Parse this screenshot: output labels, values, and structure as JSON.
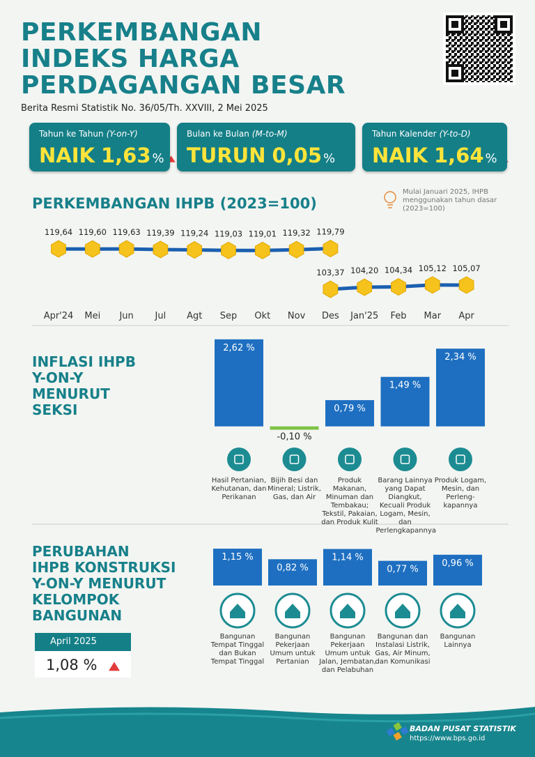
{
  "header": {
    "title_lines": [
      "PERKEMBANGAN",
      "INDEKS HARGA",
      "PERDAGANGAN BESAR"
    ],
    "subtitle": "Berita Resmi Statistik  No. 36/05/Th. XXVIII, 2 Mei 2025"
  },
  "summary": [
    {
      "label": "Tahun ke Tahun",
      "label_italic": "(Y-on-Y)",
      "direction": "NAIK",
      "value": "1,63",
      "unit": "%",
      "trend": "up"
    },
    {
      "label": "Bulan ke Bulan",
      "label_italic": "(M-to-M)",
      "direction": "TURUN",
      "value": "0,05",
      "unit": "%",
      "trend": "down"
    },
    {
      "label": "Tahun Kalender",
      "label_italic": "(Y-to-D)",
      "direction": "NAIK",
      "value": "1,64",
      "unit": "%",
      "trend": "up"
    }
  ],
  "chart_data": [
    {
      "type": "line",
      "title": "PERKEMBANGAN IHPB (2023=100)",
      "annotation": "Mulai Januari 2025, IHPB menggunakan tahun dasar (2023=100)",
      "categories": [
        "Apr'24",
        "Mei",
        "Jun",
        "Jul",
        "Agt",
        "Sep",
        "Okt",
        "Nov",
        "Des",
        "Jan'25",
        "Feb",
        "Mar",
        "Apr"
      ],
      "ylim": [
        100,
        125
      ],
      "line_color": "#1b5fb0",
      "marker_color": "#f6c21c",
      "series": [
        {
          "values": [
            119.64,
            119.6,
            119.63,
            119.39,
            119.24,
            119.03,
            119.01,
            119.32,
            119.79,
            null,
            null,
            null,
            null
          ],
          "value_labels": [
            "119,64",
            "119,60",
            "119,63",
            "119,39",
            "119,24",
            "119,03",
            "119,01",
            "119,32",
            "119,79",
            null,
            null,
            null,
            null
          ]
        },
        {
          "values": [
            null,
            null,
            null,
            null,
            null,
            null,
            null,
            null,
            103.37,
            104.2,
            104.34,
            105.12,
            105.07
          ],
          "value_labels": [
            null,
            null,
            null,
            null,
            null,
            null,
            null,
            null,
            "103,37",
            "104,20",
            "104,34",
            "105,12",
            "105,07"
          ]
        }
      ]
    },
    {
      "type": "bar",
      "title": [
        "INFLASI IHPB",
        "Y-ON-Y",
        "MENURUT",
        "SEKSI"
      ],
      "categories": [
        "Hasil Pertanian, Kehutanan, dan Perikanan",
        "Bijih Besi dan Mineral; Listrik, Gas, dan Air",
        "Produk Makanan, Minuman dan Tembakau; Tekstil, Pakaian, dan Produk Kulit",
        "Barang Lainnya yang Dapat Diangkut, Kecuali Produk Logam, Mesin, dan Perlengkapannya",
        "Produk Logam, Mesin, dan Perleng-kapannya"
      ],
      "values": [
        2.62,
        -0.1,
        0.79,
        1.49,
        2.34
      ],
      "value_labels": [
        "2,62 %",
        "-0,10 %",
        "0,79 %",
        "1,49 %",
        "2,34 %"
      ],
      "ylim": [
        -0.3,
        2.7
      ],
      "color": "#1e6fc1",
      "negative_color": "#7cc244"
    },
    {
      "type": "bar",
      "title": [
        "PERUBAHAN",
        "IHPB KONSTRUKSI",
        "Y-ON-Y MENURUT",
        "KELOMPOK",
        "BANGUNAN"
      ],
      "categories": [
        "Bangunan Tempat Tinggal dan Bukan Tempat Tinggal",
        "Bangunan Pekerjaan Umum untuk Pertanian",
        "Bangunan Pekerjaan Umum untuk Jalan, Jembatan, dan Pelabuhan",
        "Bangunan dan Instalasi Listrik, Gas, Air Minum, dan Komunikasi",
        "Bangunan Lainnya"
      ],
      "values": [
        1.15,
        0.82,
        1.14,
        0.77,
        0.96
      ],
      "value_labels": [
        "1,15 %",
        "0,82 %",
        "1,14 %",
        "0,77 %",
        "0,96 %"
      ],
      "ylim": [
        0,
        1.25
      ],
      "color": "#1e6fc1"
    }
  ],
  "construction_total": {
    "period": "April 2025",
    "value": "1,08",
    "unit": "%",
    "trend": "up"
  },
  "footer": {
    "org": "BADAN PUSAT STATISTIK",
    "url": "https://www.bps.go.id"
  }
}
